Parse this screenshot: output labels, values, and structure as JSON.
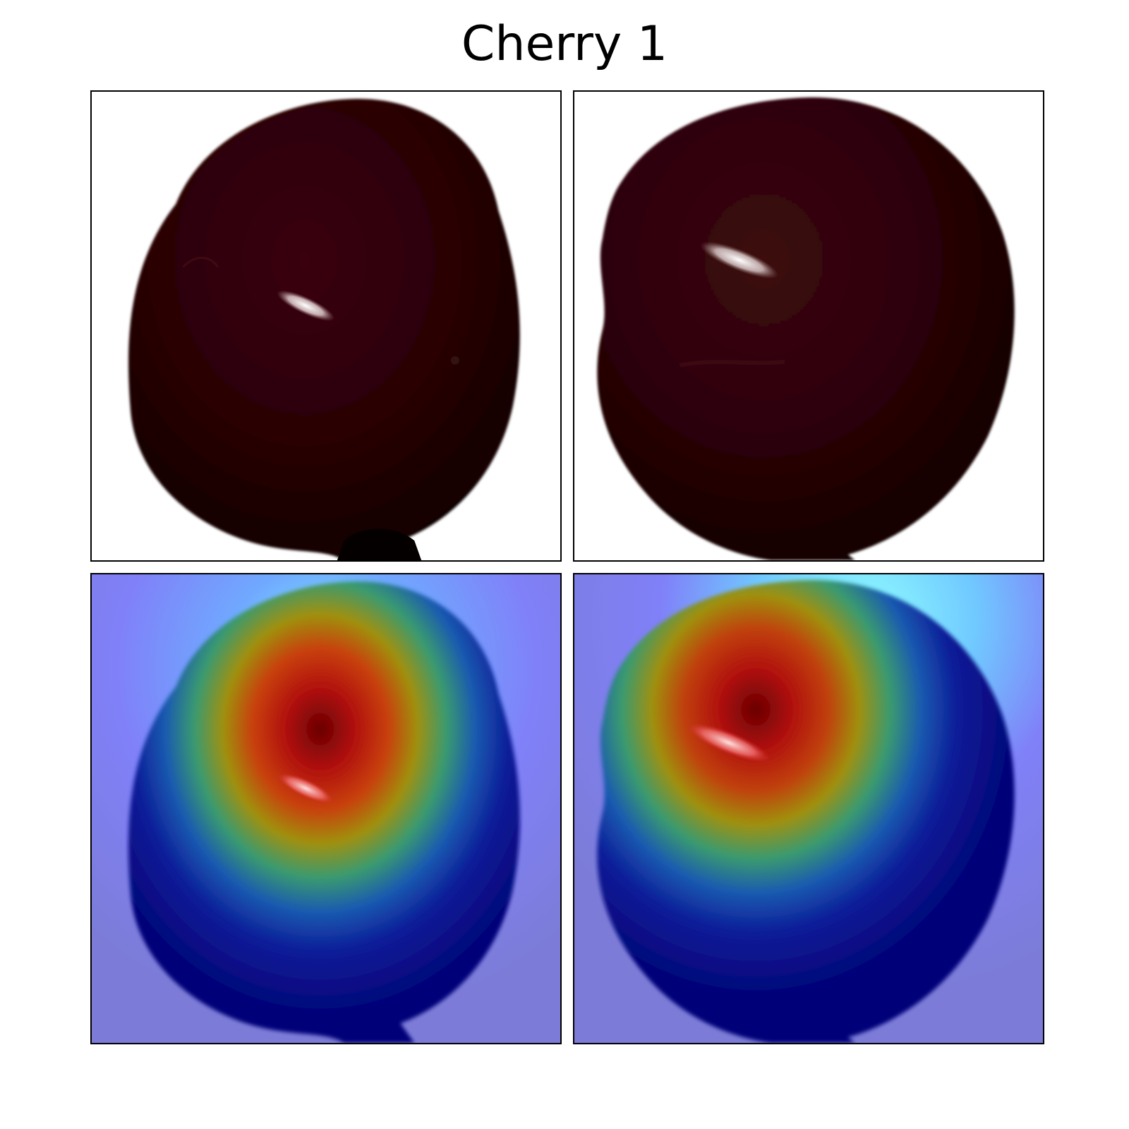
{
  "figure": {
    "title": "Cherry 1"
  },
  "panels": [
    {
      "row": "original",
      "view": "left",
      "content": "cherry-photo"
    },
    {
      "row": "original",
      "view": "right",
      "content": "cherry-photo"
    },
    {
      "row": "heatmap-overlay",
      "view": "left",
      "content": "cherry-heatmap"
    },
    {
      "row": "heatmap-overlay",
      "view": "right",
      "content": "cherry-heatmap"
    }
  ],
  "colors": {
    "background": "#ffffff",
    "cherry_dark": "#1a0204",
    "cherry_body": "#2c0507",
    "highlight": "#f4e8e8",
    "heat_low": "#00008c",
    "heat_mid": "#3cb371",
    "heat_high": "#8b0000",
    "overlay_bg": "#8080f0"
  }
}
